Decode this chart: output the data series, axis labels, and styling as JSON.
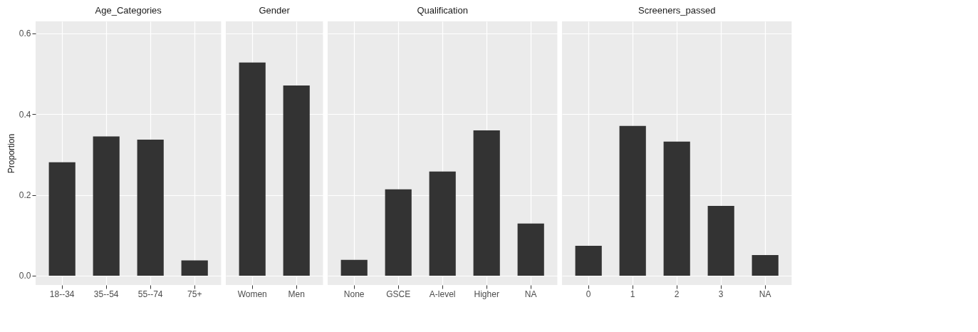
{
  "chart_data": [
    {
      "type": "bar",
      "title": "Age_Categories",
      "ylabel": "Proportion",
      "categories": [
        "18--34",
        "35--54",
        "55--74",
        "75+"
      ],
      "values": [
        0.281,
        0.345,
        0.337,
        0.038
      ],
      "color": "#333333",
      "ylim": [
        -0.023,
        0.63
      ],
      "yticks": [
        {
          "value": 0,
          "label": "0.0"
        },
        {
          "value": 0.2,
          "label": "0.2"
        },
        {
          "value": 0.4,
          "label": "0.4"
        },
        {
          "value": 0.6,
          "label": "0.6"
        }
      ],
      "grid": true
    },
    {
      "type": "bar",
      "title": "Gender",
      "categories": [
        "Women",
        "Men"
      ],
      "values": [
        0.528,
        0.471
      ],
      "color": "#333333",
      "ylim": [
        -0.023,
        0.63
      ],
      "yticks": [
        0,
        0.2,
        0.4,
        0.6
      ],
      "grid": true,
      "tick_labels": "x"
    },
    {
      "type": "bar",
      "title": "Qualification",
      "categories": [
        "None",
        "GSCE",
        "A-level",
        "Higher",
        "NA"
      ],
      "values": [
        0.039,
        0.214,
        0.258,
        0.36,
        0.129
      ],
      "color": "#333333",
      "ylim": [
        -0.023,
        0.63
      ],
      "yticks": [
        0,
        0.2,
        0.4,
        0.6
      ],
      "grid": true,
      "tick_labels": "x"
    },
    {
      "type": "bar",
      "title": "Screeners_passed",
      "categories": [
        "0",
        "1",
        "2",
        "3",
        "NA"
      ],
      "values": [
        0.074,
        0.371,
        0.332,
        0.173,
        0.051
      ],
      "color": "#333333",
      "ylim": [
        -0.023,
        0.63
      ],
      "yticks": [
        0,
        0.2,
        0.4,
        0.6
      ],
      "grid": true,
      "tick_labels": "x"
    }
  ]
}
